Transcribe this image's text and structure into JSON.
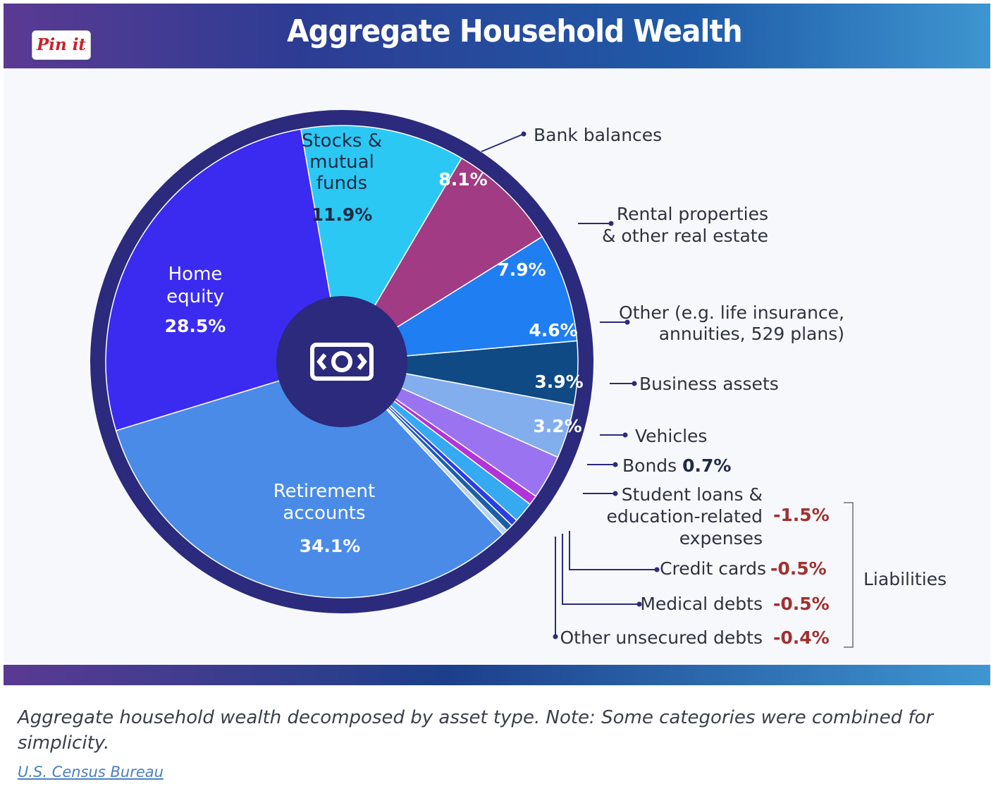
{
  "pin_label": "Pin it",
  "caption": "Aggregate household wealth decomposed by asset type. Note: Some categories were combined for simplicity.",
  "source_link": "U.S. Census Bureau",
  "center_icon": "money-bill-icon",
  "colors": {
    "ring": "#2b2a7c",
    "label_text": "#2e3340",
    "liability_value": "#a03030",
    "leader": "#2b2a7c"
  },
  "chart_data": {
    "type": "pie",
    "title": "Aggregate Household Wealth",
    "slices": [
      {
        "label": "Retirement accounts",
        "value": 34.1,
        "display": "34.1%",
        "color": "#4a8be8"
      },
      {
        "label": "Home equity",
        "value": 28.5,
        "display": "28.5%",
        "color": "#3b2bf0"
      },
      {
        "label": "Stocks & mutual funds",
        "value": 11.9,
        "display": "11.9%",
        "color": "#2cc8f4"
      },
      {
        "label": "Bank balances",
        "value": 8.1,
        "display": "8.1%",
        "color": "#a13b84"
      },
      {
        "label": "Rental properties & other real estate",
        "value": 7.9,
        "display": "7.9%",
        "color": "#1f7ef2"
      },
      {
        "label": "Other (e.g. life insurance, annuities, 529 plans)",
        "value": 4.6,
        "display": "4.6%",
        "color": "#0f4a85"
      },
      {
        "label": "Business assets",
        "value": 3.9,
        "display": "3.9%",
        "color": "#82aeee"
      },
      {
        "label": "Vehicles",
        "value": 3.2,
        "display": "3.2%",
        "color": "#9a74f0"
      },
      {
        "label": "Bonds",
        "value": 0.7,
        "display": "0.7%",
        "color": "#b233d9"
      },
      {
        "label": "Student loans & education-related expenses",
        "value": -1.5,
        "display": "-1.5%",
        "color": "#35a9f2"
      },
      {
        "label": "Credit cards",
        "value": -0.5,
        "display": "-0.5%",
        "color": "#2a3fe0"
      },
      {
        "label": "Medical debts",
        "value": -0.5,
        "display": "-0.5%",
        "color": "#1b5fa9"
      },
      {
        "label": "Other unsecured debts",
        "value": -0.4,
        "display": "-0.4%",
        "color": "#b9d4f2"
      }
    ],
    "inside_labels": {
      "stocks": [
        "Stocks &",
        "mutual",
        "funds"
      ],
      "home": [
        "Home",
        "equity"
      ],
      "retirement": [
        "Retirement",
        "accounts"
      ]
    },
    "outside_labels": {
      "bank": "Bank balances",
      "rental": [
        "Rental properties",
        "& other real estate"
      ],
      "other": [
        "Other (e.g. life insurance,",
        "annuities, 529 plans)"
      ],
      "business": "Business assets",
      "vehicles": "Vehicles",
      "bonds": "Bonds",
      "student": [
        "Student loans &",
        "education-related",
        "expenses"
      ],
      "credit": "Credit cards",
      "medical": "Medical debts",
      "unsecured": "Other unsecured debts"
    },
    "liabilities_label": "Liabilities"
  }
}
